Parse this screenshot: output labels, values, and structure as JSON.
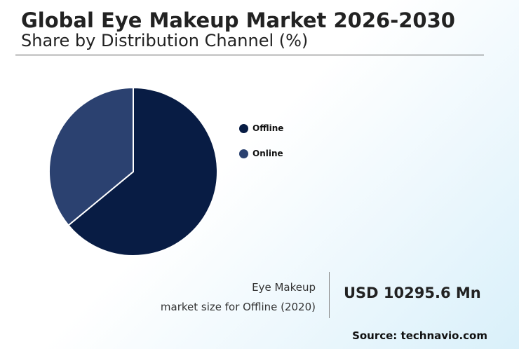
{
  "header": {
    "title": "Global Eye Makeup Market 2026-2030",
    "subtitle": "Share by Distribution Channel (%)"
  },
  "chart_data": {
    "type": "pie",
    "title": "Global Eye Makeup Market 2026-2030",
    "subtitle": "Share by Distribution Channel (%)",
    "categories": [
      "Offline",
      "Online"
    ],
    "values": [
      64,
      36
    ],
    "colors": [
      "#081c44",
      "#2b4170"
    ],
    "start_angle_deg": 0,
    "direction": "clockwise",
    "legend_position": "right"
  },
  "footer": {
    "caption_line1": "Eye Makeup",
    "caption_line2": "market size for Offline (2020)",
    "stat_value": "USD 10295.6 Mn",
    "source": "Source: technavio.com"
  }
}
